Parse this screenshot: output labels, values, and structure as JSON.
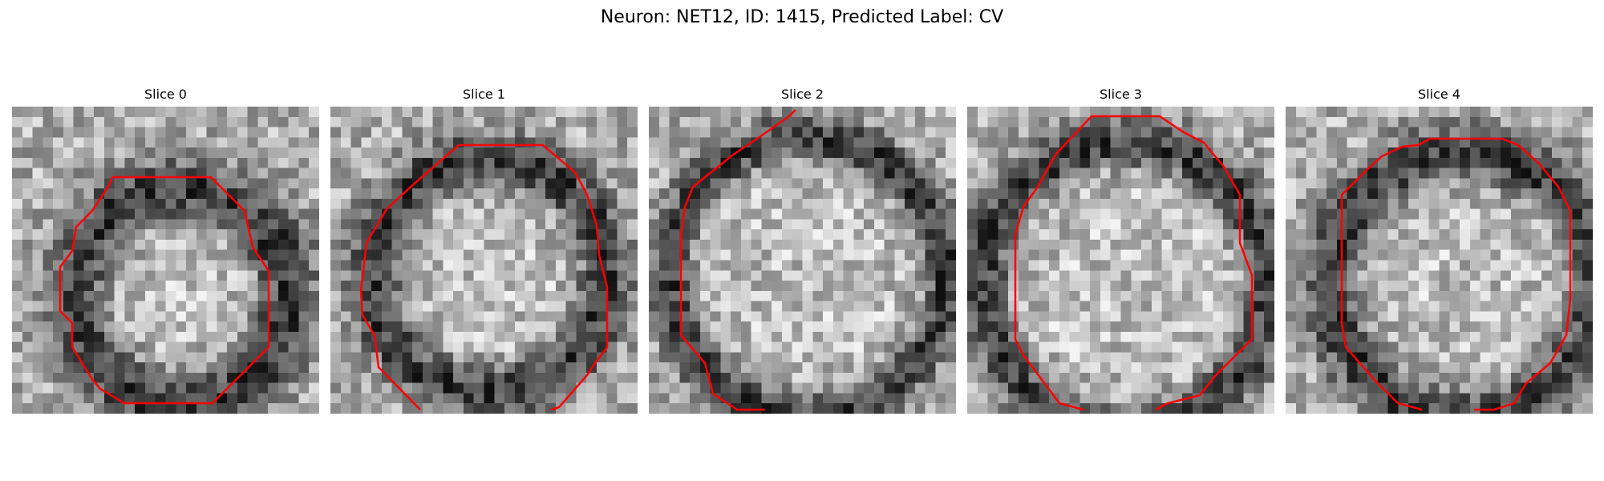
{
  "figure": {
    "title": "Neuron: NET12, ID: 1415, Predicted Label: CV"
  },
  "panels": [
    {
      "title": "Slice 0"
    },
    {
      "title": "Slice 1"
    },
    {
      "title": "Slice 2"
    },
    {
      "title": "Slice 3"
    },
    {
      "title": "Slice 4"
    }
  ],
  "colors": {
    "contour": "#ff0000",
    "colormap": "grayscale"
  }
}
